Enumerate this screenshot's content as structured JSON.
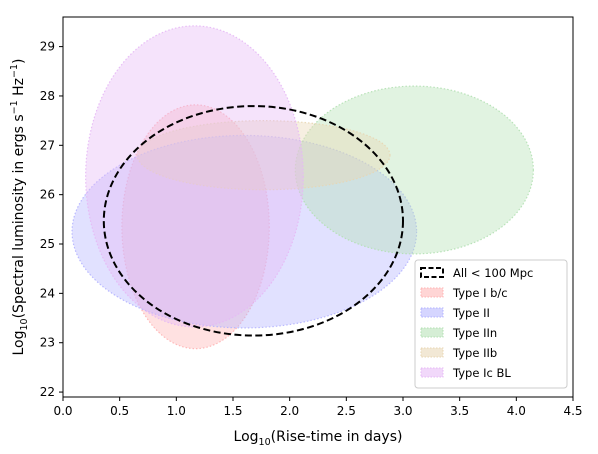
{
  "chart_data": {
    "type": "scatter",
    "xlabel": {
      "prefix": "Log",
      "sub": "10",
      "rest": "(Rise-time in days)"
    },
    "ylabel": {
      "prefix": "Log",
      "sub": "10",
      "rest": "(Spectral luminosity in ergs s",
      "sup1": "−1",
      "mid": " Hz",
      "sup2": "−1",
      "end": ")"
    },
    "xlim": [
      0.0,
      4.5
    ],
    "ylim": [
      21.9,
      29.6
    ],
    "xticks": [
      0.0,
      0.5,
      1.0,
      1.5,
      2.0,
      2.5,
      3.0,
      3.5,
      4.0,
      4.5
    ],
    "xtick_labels": [
      "0.0",
      "0.5",
      "1.0",
      "1.5",
      "2.0",
      "2.5",
      "3.0",
      "3.5",
      "4.0",
      "4.5"
    ],
    "yticks": [
      22,
      23,
      24,
      25,
      26,
      27,
      28,
      29
    ],
    "ytick_labels": [
      "22",
      "23",
      "24",
      "25",
      "26",
      "27",
      "28",
      "29"
    ],
    "grid": false,
    "legend_position": "bottom-right",
    "series": [
      {
        "name": "All < 100 Mpc",
        "center": [
          1.68,
          25.47
        ],
        "x_range": [
          0.38,
          3.02
        ],
        "y_range": [
          23.15,
          27.8
        ],
        "color": "#000000",
        "fill": "none",
        "linestyle": "dashed"
      },
      {
        "name": "Type I b/c",
        "center": [
          1.17,
          25.35
        ],
        "x_range": [
          0.52,
          1.82
        ],
        "y_range": [
          22.88,
          27.82
        ],
        "color": "#ffb3b3",
        "fill_opacity": 0.4,
        "linestyle": "dotted"
      },
      {
        "name": "Type II",
        "center": [
          1.6,
          25.25
        ],
        "x_range": [
          0.08,
          3.12
        ],
        "y_range": [
          23.3,
          27.2
        ],
        "color": "#b3b3ff",
        "fill_opacity": 0.4,
        "linestyle": "dotted"
      },
      {
        "name": "Type IIn",
        "center": [
          3.1,
          26.5
        ],
        "x_range": [
          2.05,
          4.15
        ],
        "y_range": [
          24.8,
          28.2
        ],
        "color": "#b3e0b3",
        "fill_opacity": 0.4,
        "linestyle": "dotted"
      },
      {
        "name": "Type IIb",
        "center": [
          1.77,
          26.8
        ],
        "x_range": [
          0.65,
          2.88
        ],
        "y_range": [
          26.1,
          27.5
        ],
        "color": "#e8d6b3",
        "fill_opacity": 0.4,
        "linestyle": "dotted"
      },
      {
        "name": "Type Ic BL",
        "center": [
          1.16,
          26.37
        ],
        "x_range": [
          0.2,
          2.12
        ],
        "y_range": [
          23.3,
          29.4
        ],
        "color": "#e6b8f5",
        "fill_opacity": 0.4,
        "linestyle": "dotted"
      }
    ]
  }
}
